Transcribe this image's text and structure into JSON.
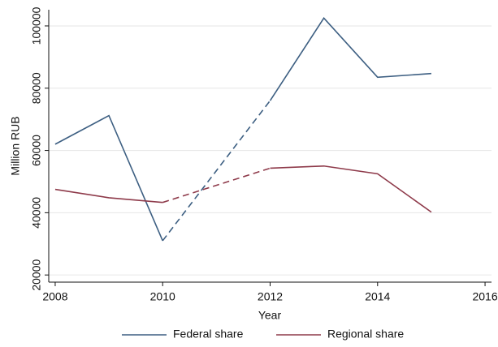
{
  "chart_data": {
    "type": "line",
    "x": [
      2008,
      2009,
      2010,
      2011,
      2012,
      2013,
      2014,
      2015
    ],
    "series": [
      {
        "name": "Federal share",
        "color": "#3d5f82",
        "values": [
          62000,
          71200,
          31000,
          null,
          76000,
          102500,
          83500,
          84700
        ]
      },
      {
        "name": "Regional share",
        "color": "#8e3a4a",
        "values": [
          47500,
          44800,
          43300,
          null,
          54300,
          55000,
          52500,
          40200
        ]
      }
    ],
    "xlabel": "Year",
    "ylabel": "Million RUB",
    "xlim": [
      2007.88,
      2016.12
    ],
    "xticks": [
      2008,
      2010,
      2012,
      2014,
      2016
    ],
    "ylim": [
      17700,
      105200
    ],
    "yticks": [
      20000,
      40000,
      60000,
      80000,
      100000
    ],
    "grid": true,
    "legend": "bottom"
  }
}
